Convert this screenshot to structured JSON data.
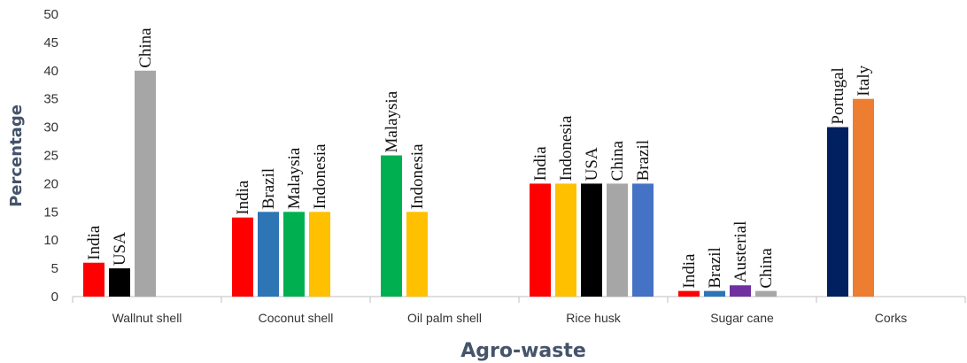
{
  "chart_data": {
    "type": "bar",
    "xlabel": "Agro-waste",
    "ylabel": "Percentage",
    "ylim": [
      0,
      50
    ],
    "yticks": [
      0,
      5,
      10,
      15,
      20,
      25,
      30,
      35,
      40,
      45,
      50
    ],
    "grid": false,
    "legend": "none",
    "groups": [
      {
        "category": "Wallnut shell",
        "bars": [
          {
            "label": "India",
            "value": 6,
            "color": "#ff0000"
          },
          {
            "label": "USA",
            "value": 5,
            "color": "#000000"
          },
          {
            "label": "China",
            "value": 40,
            "color": "#a6a6a6"
          }
        ]
      },
      {
        "category": "Coconut shell",
        "bars": [
          {
            "label": "India",
            "value": 14,
            "color": "#ff0000"
          },
          {
            "label": "Brazil",
            "value": 15,
            "color": "#2e75b6"
          },
          {
            "label": "Malaysia",
            "value": 15,
            "color": "#00b050"
          },
          {
            "label": "Indonesia",
            "value": 15,
            "color": "#ffc000"
          }
        ]
      },
      {
        "category": "Oil palm shell",
        "bars": [
          {
            "label": "Malaysia",
            "value": 25,
            "color": "#00b050"
          },
          {
            "label": "Indonesia",
            "value": 15,
            "color": "#ffc000"
          }
        ]
      },
      {
        "category": "Rice husk",
        "bars": [
          {
            "label": "India",
            "value": 20,
            "color": "#ff0000"
          },
          {
            "label": "Indonesia",
            "value": 20,
            "color": "#ffc000"
          },
          {
            "label": "USA",
            "value": 20,
            "color": "#000000"
          },
          {
            "label": "China",
            "value": 20,
            "color": "#a6a6a6"
          },
          {
            "label": "Brazil",
            "value": 20,
            "color": "#4472c4"
          }
        ]
      },
      {
        "category": "Sugar cane",
        "bars": [
          {
            "label": "India",
            "value": 1,
            "color": "#ff0000"
          },
          {
            "label": "Brazil",
            "value": 1,
            "color": "#2e75b6"
          },
          {
            "label": "Austerial",
            "value": 2,
            "color": "#7030a0"
          },
          {
            "label": "China",
            "value": 1,
            "color": "#a6a6a6"
          }
        ]
      },
      {
        "category": "Corks",
        "bars": [
          {
            "label": "Portugal",
            "value": 30,
            "color": "#002060"
          },
          {
            "label": "Italy",
            "value": 35,
            "color": "#ed7d31"
          }
        ]
      }
    ]
  }
}
